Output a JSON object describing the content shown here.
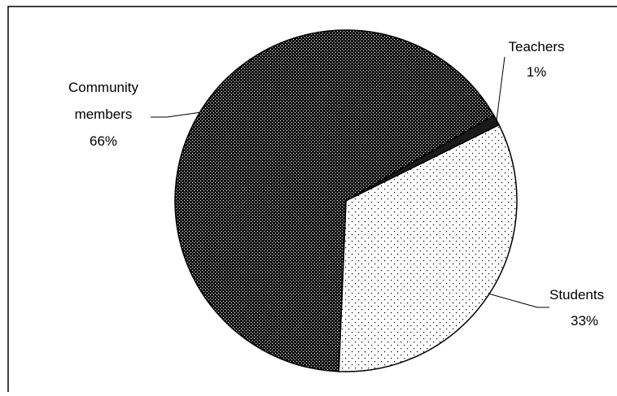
{
  "chart_data": {
    "type": "pie",
    "title": "",
    "slices": [
      {
        "label": "Teachers",
        "value": 1,
        "value_label": "1%",
        "pattern": "black"
      },
      {
        "label": "Students",
        "value": 33,
        "value_label": "33%",
        "pattern": "light-dots"
      },
      {
        "label": "Community members",
        "value": 66,
        "value_label": "66%",
        "pattern": "dense-dots"
      }
    ],
    "start_angle_deg": 60,
    "direction": "clockwise",
    "legend": "none",
    "colors": {
      "background": "#ffffff",
      "outline": "#000000",
      "dark_fill": "#1a1a1a",
      "light_fill": "#ffffff"
    }
  }
}
